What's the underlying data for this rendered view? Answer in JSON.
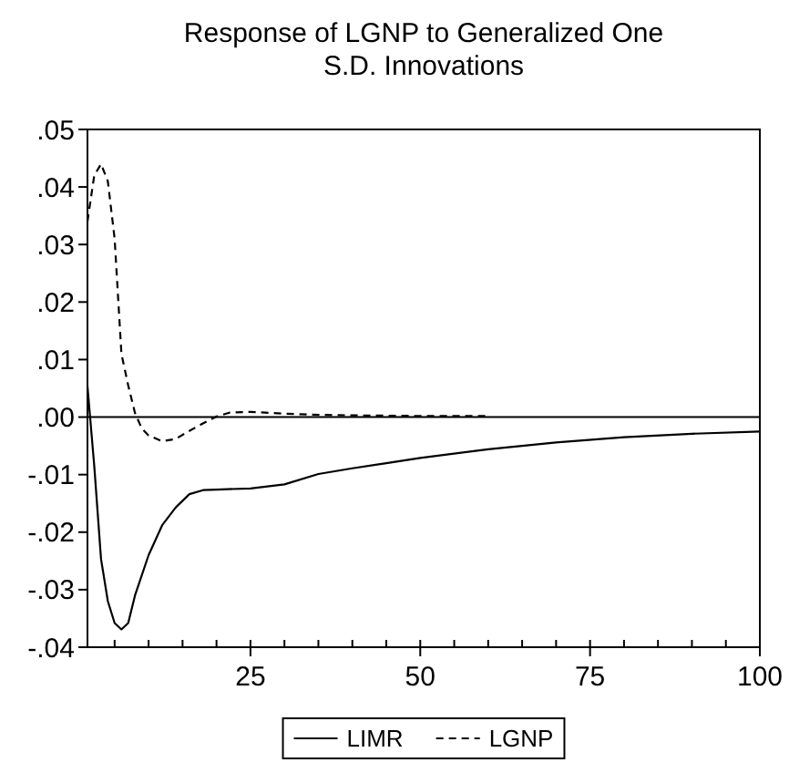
{
  "chart_data": {
    "type": "line",
    "title": "Response of LGNP to Generalized One\nS.D. Innovations",
    "xlim": [
      1,
      100
    ],
    "xticks": [
      {
        "value": 5,
        "label": null
      },
      {
        "value": 10,
        "label": null
      },
      {
        "value": 15,
        "label": null
      },
      {
        "value": 20,
        "label": null
      },
      25,
      {
        "value": 30,
        "label": null
      },
      {
        "value": 35,
        "label": null
      },
      {
        "value": 40,
        "label": null
      },
      {
        "value": 45,
        "label": null
      },
      50,
      {
        "value": 55,
        "label": null
      },
      {
        "value": 60,
        "label": null
      },
      {
        "value": 65,
        "label": null
      },
      {
        "value": 70,
        "label": null
      },
      75,
      {
        "value": 80,
        "label": null
      },
      {
        "value": 85,
        "label": null
      },
      {
        "value": 90,
        "label": null
      },
      {
        "value": 95,
        "label": null
      },
      100
    ],
    "ylim": [
      -0.04,
      0.05
    ],
    "yticks": [
      {
        "value": -0.04,
        "label": "-.04"
      },
      {
        "value": -0.03,
        "label": "-.03"
      },
      {
        "value": -0.02,
        "label": "-.02"
      },
      {
        "value": -0.01,
        "label": "-.01"
      },
      {
        "value": 0,
        "label": ".00"
      },
      {
        "value": 0.01,
        "label": ".01"
      },
      {
        "value": 0.02,
        "label": ".02"
      },
      {
        "value": 0.03,
        "label": ".03"
      },
      {
        "value": 0.04,
        "label": ".04"
      },
      {
        "value": 0.05,
        "label": ".05"
      }
    ],
    "ref_lines": [
      {
        "axis": "y",
        "value": 0,
        "color": "#000000"
      }
    ],
    "legend": "bottom",
    "series": [
      {
        "name": "LIMR",
        "color": "#000000",
        "line_style": "solid",
        "x": [
          1,
          2,
          3,
          4,
          5,
          6,
          7,
          8,
          10,
          12,
          14,
          16,
          18,
          20,
          25,
          30,
          35,
          40,
          45,
          50,
          60,
          70,
          80,
          90,
          100
        ],
        "values": [
          0.0054,
          -0.0085,
          -0.0247,
          -0.032,
          -0.0358,
          -0.0369,
          -0.0358,
          -0.031,
          -0.024,
          -0.0188,
          -0.0157,
          -0.0134,
          -0.0127,
          -0.0126,
          -0.0124,
          -0.0117,
          -0.0099,
          -0.0089,
          -0.008,
          -0.0071,
          -0.0056,
          -0.0044,
          -0.0035,
          -0.0029,
          -0.0025
        ]
      },
      {
        "name": "LGNP",
        "color": "#000000",
        "line_style": "dashed",
        "x": [
          1,
          2,
          3,
          4,
          5,
          6,
          7,
          8,
          9,
          10,
          12,
          14,
          16,
          18,
          20,
          22,
          25,
          30,
          35,
          40,
          50,
          60
        ],
        "values": [
          0.034,
          0.042,
          0.044,
          0.041,
          0.031,
          0.011,
          0.0055,
          0.0007,
          -0.002,
          -0.0032,
          -0.0042,
          -0.0038,
          -0.0024,
          -0.0011,
          0.0001,
          0.0008,
          0.0009,
          0.0006,
          0.0004,
          0.0003,
          0.0002,
          0.0002
        ]
      }
    ]
  }
}
